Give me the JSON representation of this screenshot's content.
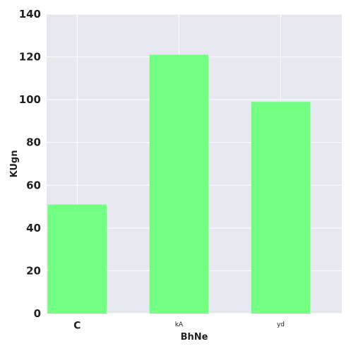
{
  "chart_data": {
    "type": "bar",
    "categories": [
      "C",
      "kA",
      "yd"
    ],
    "values": [
      51,
      121,
      99
    ],
    "xlabel": "BhNe",
    "ylabel": "KUgn",
    "ylim": [
      0,
      140
    ],
    "yticks": [
      0,
      20,
      40,
      60,
      80,
      100,
      120,
      140
    ],
    "grid": true,
    "colors": {
      "bar": "#73ff82",
      "plot_background": "#e8e8f0",
      "grid": "#ffffff"
    }
  }
}
